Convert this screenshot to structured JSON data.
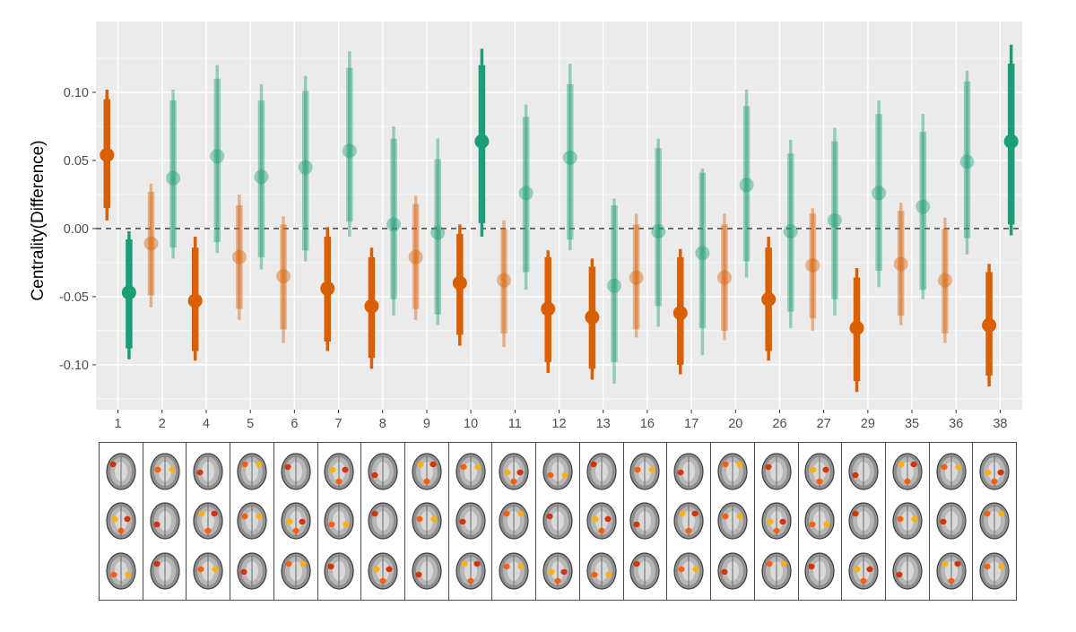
{
  "chart_data": {
    "type": "scatter",
    "ylabel": "Centrality(Difference)",
    "xlabel": "",
    "ylim": [
      -0.133,
      0.152
    ],
    "yticks": [
      -0.1,
      -0.05,
      0.0,
      0.05,
      0.1
    ],
    "ytick_labels": [
      "-0.10",
      "-0.05",
      "0.00",
      "0.05",
      "0.10"
    ],
    "categories": [
      "1",
      "2",
      "4",
      "5",
      "6",
      "7",
      "8",
      "9",
      "10",
      "11",
      "12",
      "13",
      "16",
      "17",
      "20",
      "26",
      "27",
      "29",
      "35",
      "36",
      "38"
    ],
    "reference_line": 0,
    "grid": true,
    "colors": {
      "orange": "#d95f02",
      "green": "#1b9e77",
      "panel_bg": "#ebebeb",
      "grid": "#ffffff"
    },
    "series": [
      {
        "color": "orange",
        "points": [
          {
            "est": 0.054,
            "inner": [
              0.015,
              0.095
            ],
            "outer": [
              0.006,
              0.102
            ],
            "significant": true
          },
          {
            "est": -0.011,
            "inner": [
              -0.049,
              0.027
            ],
            "outer": [
              -0.058,
              0.033
            ],
            "significant": false
          },
          {
            "est": -0.053,
            "inner": [
              -0.09,
              -0.014
            ],
            "outer": [
              -0.097,
              -0.006
            ],
            "significant": true
          },
          {
            "est": -0.021,
            "inner": [
              -0.059,
              0.017
            ],
            "outer": [
              -0.067,
              0.025
            ],
            "significant": false
          },
          {
            "est": -0.035,
            "inner": [
              -0.074,
              0.003
            ],
            "outer": [
              -0.084,
              0.009
            ],
            "significant": false
          },
          {
            "est": -0.044,
            "inner": [
              -0.083,
              -0.006
            ],
            "outer": [
              -0.09,
              0.001
            ],
            "significant": true
          },
          {
            "est": -0.057,
            "inner": [
              -0.095,
              -0.021
            ],
            "outer": [
              -0.103,
              -0.014
            ],
            "significant": true
          },
          {
            "est": -0.021,
            "inner": [
              -0.059,
              0.018
            ],
            "outer": [
              -0.067,
              0.024
            ],
            "significant": false
          },
          {
            "est": -0.04,
            "inner": [
              -0.078,
              -0.004
            ],
            "outer": [
              -0.086,
              0.003
            ],
            "significant": true
          },
          {
            "est": -0.038,
            "inner": [
              -0.077,
              0.0
            ],
            "outer": [
              -0.087,
              0.006
            ],
            "significant": false
          },
          {
            "est": -0.059,
            "inner": [
              -0.098,
              -0.021
            ],
            "outer": [
              -0.106,
              -0.016
            ],
            "significant": true
          },
          {
            "est": -0.065,
            "inner": [
              -0.103,
              -0.028
            ],
            "outer": [
              -0.111,
              -0.022
            ],
            "significant": true
          },
          {
            "est": -0.036,
            "inner": [
              -0.074,
              0.003
            ],
            "outer": [
              -0.08,
              0.011
            ],
            "significant": false
          },
          {
            "est": -0.062,
            "inner": [
              -0.1,
              -0.021
            ],
            "outer": [
              -0.107,
              -0.015
            ],
            "significant": true
          },
          {
            "est": -0.036,
            "inner": [
              -0.075,
              0.003
            ],
            "outer": [
              -0.082,
              0.011
            ],
            "significant": false
          },
          {
            "est": -0.052,
            "inner": [
              -0.09,
              -0.014
            ],
            "outer": [
              -0.097,
              -0.006
            ],
            "significant": true
          },
          {
            "est": -0.027,
            "inner": [
              -0.066,
              0.011
            ],
            "outer": [
              -0.075,
              0.015
            ],
            "significant": false
          },
          {
            "est": -0.073,
            "inner": [
              -0.112,
              -0.036
            ],
            "outer": [
              -0.12,
              -0.029
            ],
            "significant": true
          },
          {
            "est": -0.026,
            "inner": [
              -0.064,
              0.013
            ],
            "outer": [
              -0.071,
              0.019
            ],
            "significant": false
          },
          {
            "est": -0.038,
            "inner": [
              -0.077,
              0.0
            ],
            "outer": [
              -0.084,
              0.008
            ],
            "significant": false
          },
          {
            "est": -0.071,
            "inner": [
              -0.108,
              -0.032
            ],
            "outer": [
              -0.116,
              -0.026
            ],
            "significant": true
          }
        ]
      },
      {
        "color": "green",
        "points": [
          {
            "est": -0.047,
            "inner": [
              -0.088,
              -0.008
            ],
            "outer": [
              -0.096,
              -0.002
            ],
            "significant": true
          },
          {
            "est": 0.037,
            "inner": [
              -0.014,
              0.094
            ],
            "outer": [
              -0.022,
              0.102
            ],
            "significant": false
          },
          {
            "est": 0.053,
            "inner": [
              -0.01,
              0.11
            ],
            "outer": [
              -0.018,
              0.12
            ],
            "significant": false
          },
          {
            "est": 0.038,
            "inner": [
              -0.021,
              0.094
            ],
            "outer": [
              -0.03,
              0.106
            ],
            "significant": false
          },
          {
            "est": 0.045,
            "inner": [
              -0.016,
              0.101
            ],
            "outer": [
              -0.024,
              0.112
            ],
            "significant": false
          },
          {
            "est": 0.057,
            "inner": [
              0.005,
              0.118
            ],
            "outer": [
              -0.006,
              0.13
            ],
            "significant": false
          },
          {
            "est": 0.003,
            "inner": [
              -0.052,
              0.066
            ],
            "outer": [
              -0.064,
              0.075
            ],
            "significant": false
          },
          {
            "est": -0.003,
            "inner": [
              -0.063,
              0.051
            ],
            "outer": [
              -0.071,
              0.066
            ],
            "significant": false
          },
          {
            "est": 0.064,
            "inner": [
              0.004,
              0.12
            ],
            "outer": [
              -0.006,
              0.132
            ],
            "significant": true
          },
          {
            "est": 0.026,
            "inner": [
              -0.032,
              0.082
            ],
            "outer": [
              -0.045,
              0.091
            ],
            "significant": false
          },
          {
            "est": 0.052,
            "inner": [
              -0.008,
              0.106
            ],
            "outer": [
              -0.016,
              0.121
            ],
            "significant": false
          },
          {
            "est": -0.042,
            "inner": [
              -0.098,
              0.017
            ],
            "outer": [
              -0.114,
              0.022
            ],
            "significant": false
          },
          {
            "est": -0.002,
            "inner": [
              -0.057,
              0.059
            ],
            "outer": [
              -0.072,
              0.066
            ],
            "significant": false
          },
          {
            "est": -0.018,
            "inner": [
              -0.073,
              0.041
            ],
            "outer": [
              -0.093,
              0.044
            ],
            "significant": false
          },
          {
            "est": 0.032,
            "inner": [
              -0.024,
              0.09
            ],
            "outer": [
              -0.036,
              0.102
            ],
            "significant": false
          },
          {
            "est": -0.002,
            "inner": [
              -0.061,
              0.055
            ],
            "outer": [
              -0.073,
              0.065
            ],
            "significant": false
          },
          {
            "est": 0.006,
            "inner": [
              -0.052,
              0.064
            ],
            "outer": [
              -0.064,
              0.074
            ],
            "significant": false
          },
          {
            "est": 0.026,
            "inner": [
              -0.031,
              0.084
            ],
            "outer": [
              -0.043,
              0.094
            ],
            "significant": false
          },
          {
            "est": 0.016,
            "inner": [
              -0.045,
              0.071
            ],
            "outer": [
              -0.052,
              0.084
            ],
            "significant": false
          },
          {
            "est": 0.049,
            "inner": [
              -0.007,
              0.108
            ],
            "outer": [
              -0.019,
              0.116
            ],
            "significant": false
          },
          {
            "est": 0.064,
            "inner": [
              0.003,
              0.121
            ],
            "outer": [
              -0.005,
              0.135
            ],
            "significant": true
          }
        ]
      }
    ]
  },
  "brain_panels": {
    "label": "brain map slices",
    "rows": 3,
    "activation_colors": [
      "#d62b00",
      "#ff5a00",
      "#ffb000"
    ]
  }
}
